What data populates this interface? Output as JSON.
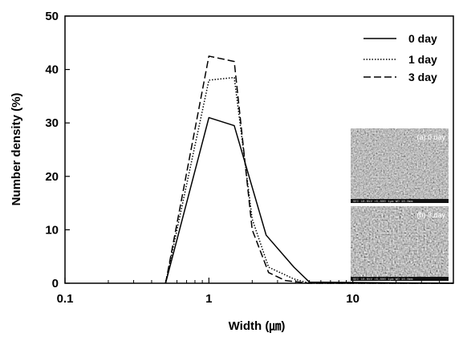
{
  "chart_data": {
    "type": "line",
    "title": "",
    "xlabel": "Width (㎛)",
    "ylabel": "Number density (%)",
    "xscale": "log",
    "xlim": [
      0.1,
      50
    ],
    "ylim": [
      0,
      50
    ],
    "xticks": [
      0.1,
      1,
      10
    ],
    "xtick_labels": [
      "0.1",
      "1",
      "10"
    ],
    "yticks": [
      0,
      10,
      20,
      30,
      40,
      50
    ],
    "ytick_labels": [
      "0",
      "10",
      "20",
      "30",
      "40",
      "50"
    ],
    "grid": false,
    "legend_position": "top-right",
    "series": [
      {
        "name": "0 day",
        "style": "solid",
        "x": [
          0.5,
          1.0,
          1.5,
          2.5,
          3.9,
          5.0,
          50
        ],
        "y": [
          0,
          31,
          29.5,
          9,
          3,
          0.2,
          0
        ]
      },
      {
        "name": "1 day",
        "style": "dotted",
        "x": [
          0.5,
          1.0,
          1.5,
          2.0,
          2.6,
          3.9,
          5.0,
          50
        ],
        "y": [
          0,
          38,
          38.5,
          12,
          3,
          0.8,
          0,
          0
        ]
      },
      {
        "name": "3 day",
        "style": "dashed",
        "x": [
          0.5,
          1.0,
          1.5,
          2.0,
          2.6,
          3.4,
          5.0,
          50
        ],
        "y": [
          0,
          42.5,
          41.5,
          10,
          2,
          0.5,
          0,
          0
        ]
      }
    ],
    "insets": [
      {
        "label": "(a) 0 day"
      },
      {
        "label": "(b) 3 day"
      }
    ]
  }
}
